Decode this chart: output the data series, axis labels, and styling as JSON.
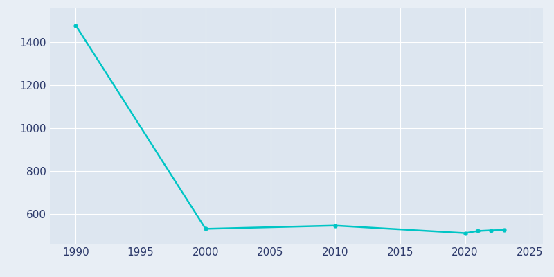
{
  "years": [
    1990,
    2000,
    2010,
    2020,
    2021,
    2022,
    2023
  ],
  "population": [
    1480,
    530,
    545,
    510,
    520,
    523,
    525
  ],
  "line_color": "#00c5c5",
  "marker_style": "o",
  "marker_size": 3.5,
  "line_width": 1.8,
  "bg_color": "#e8eef5",
  "plot_bg_color": "#dde6f0",
  "xlim": [
    1988,
    2026
  ],
  "ylim": [
    460,
    1560
  ],
  "yticks": [
    600,
    800,
    1000,
    1200,
    1400
  ],
  "xticks": [
    1990,
    1995,
    2000,
    2005,
    2010,
    2015,
    2020,
    2025
  ],
  "grid_color": "#ffffff",
  "grid_linewidth": 0.8,
  "tick_label_color": "#2d3a6b",
  "tick_label_fontsize": 11
}
